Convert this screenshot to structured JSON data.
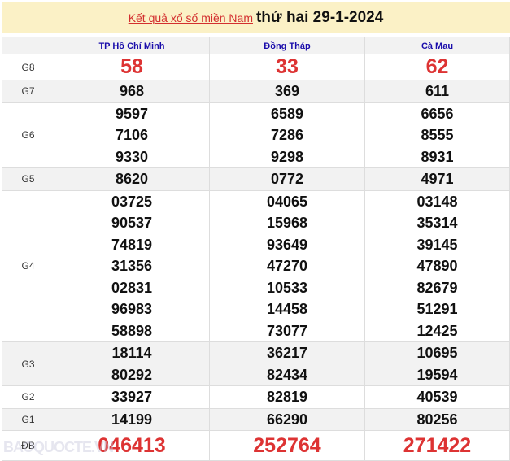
{
  "header": {
    "link": "Kết quả xổ số miền Nam",
    "date": "thứ hai 29-1-2024"
  },
  "provinces": [
    "TP Hồ Chí Minh",
    "Đồng Tháp",
    "Cà Mau"
  ],
  "prizes": [
    {
      "label": "G8",
      "style": "big",
      "values": [
        [
          "58"
        ],
        [
          "33"
        ],
        [
          "62"
        ]
      ]
    },
    {
      "label": "G7",
      "style": "num",
      "values": [
        [
          "968"
        ],
        [
          "369"
        ],
        [
          "611"
        ]
      ]
    },
    {
      "label": "G6",
      "style": "num",
      "values": [
        [
          "9597",
          "7106",
          "9330"
        ],
        [
          "6589",
          "7286",
          "9298"
        ],
        [
          "6656",
          "8555",
          "8931"
        ]
      ]
    },
    {
      "label": "G5",
      "style": "num",
      "values": [
        [
          "8620"
        ],
        [
          "0772"
        ],
        [
          "4971"
        ]
      ]
    },
    {
      "label": "G4",
      "style": "num",
      "values": [
        [
          "03725",
          "90537",
          "74819",
          "31356",
          "02831",
          "96983",
          "58898"
        ],
        [
          "04065",
          "15968",
          "93649",
          "47270",
          "10533",
          "14458",
          "73077"
        ],
        [
          "03148",
          "35314",
          "39145",
          "47890",
          "82679",
          "51291",
          "12425"
        ]
      ]
    },
    {
      "label": "G3",
      "style": "num",
      "values": [
        [
          "18114",
          "80292"
        ],
        [
          "36217",
          "82434"
        ],
        [
          "10695",
          "19594"
        ]
      ]
    },
    {
      "label": "G2",
      "style": "num",
      "values": [
        [
          "33927"
        ],
        [
          "82819"
        ],
        [
          "40539"
        ]
      ]
    },
    {
      "label": "G1",
      "style": "num",
      "values": [
        [
          "14199"
        ],
        [
          "66290"
        ],
        [
          "80256"
        ]
      ]
    },
    {
      "label": "ĐB",
      "style": "db",
      "values": [
        [
          "046413"
        ],
        [
          "252764"
        ],
        [
          "271422"
        ]
      ]
    }
  ],
  "watermark": "BAOQUOCTE.VN",
  "colors": {
    "accent": "#d33333",
    "header_bg": "#fbf1c6",
    "link": "#1a0dab"
  }
}
